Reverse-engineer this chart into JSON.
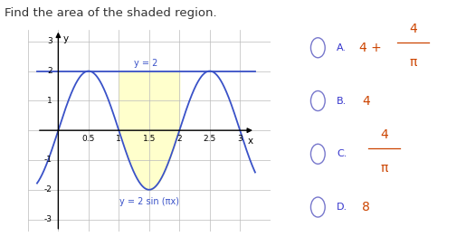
{
  "title": "Find the area of the shaded region.",
  "title_color": "#333333",
  "title_fontsize": 9.5,
  "graph_bg": "#ffffff",
  "grid_color": "#bbbbbb",
  "xlim": [
    -0.35,
    3.25
  ],
  "ylim": [
    -3.4,
    3.4
  ],
  "xticks": [
    0.5,
    1.0,
    1.5,
    2.0,
    2.5,
    3.0
  ],
  "yticks": [
    -3,
    -2,
    -1,
    1,
    2,
    3
  ],
  "xlabel": "x",
  "ylabel": "y",
  "curve_color": "#3a52c8",
  "line_color": "#3a52c8",
  "shade_color": "#ffffcc",
  "shade_alpha": 1.0,
  "label_y2": "y = 2",
  "label_sin": "y = 2 sin (πx)",
  "option_color": "#cc4400",
  "option_label_color": "#3333cc",
  "circle_color": "#7777cc",
  "shade_x1": 1.0,
  "shade_x2": 2.0
}
